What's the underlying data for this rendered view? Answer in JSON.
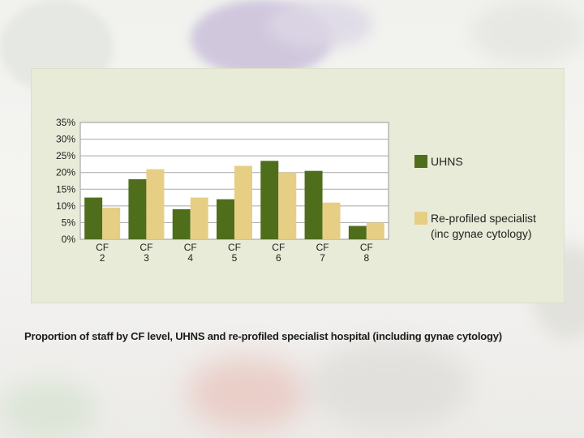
{
  "caption": "Proportion of staff by CF level, UHNS and re-profiled specialist hospital (including gynae cytology)",
  "chart_data": {
    "type": "bar",
    "categories": [
      [
        "CF",
        "2"
      ],
      [
        "CF",
        "3"
      ],
      [
        "CF",
        "4"
      ],
      [
        "CF",
        "5"
      ],
      [
        "CF",
        "6"
      ],
      [
        "CF",
        "7"
      ],
      [
        "CF",
        "8"
      ]
    ],
    "series": [
      {
        "name": "UHNS",
        "color": "#4f6e1c",
        "values": [
          12.5,
          18,
          9,
          12,
          23.5,
          20.5,
          4
        ]
      },
      {
        "name": "Re-profiled specialist",
        "name_line2": "(inc gynae cytology)",
        "color": "#e6cf84",
        "values": [
          9.5,
          21,
          12.5,
          22,
          20,
          11,
          5
        ]
      }
    ],
    "y_ticks": [
      "0%",
      "5%",
      "10%",
      "15%",
      "20%",
      "25%",
      "30%",
      "35%"
    ],
    "ylim": [
      0,
      35
    ],
    "grid": true,
    "legend_position": "right"
  }
}
